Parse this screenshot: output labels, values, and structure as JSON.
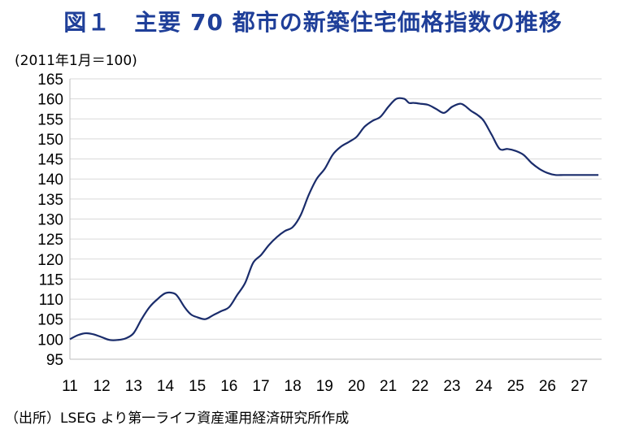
{
  "chart_data": {
    "type": "line",
    "title": "図１　主要 70 都市の新築住宅価格指数の推移",
    "unit_label": "(2011年1月＝100)",
    "source": "（出所）LSEG より第一ライフ資産運用経済研究所作成",
    "xlabel": "",
    "ylabel": "",
    "ylim": [
      95,
      165
    ],
    "xlim": [
      2011,
      2027.7
    ],
    "grid": true,
    "y_ticks": [
      "95",
      "100",
      "105",
      "110",
      "115",
      "120",
      "125",
      "130",
      "135",
      "140",
      "145",
      "150",
      "155",
      "160",
      "165"
    ],
    "x_ticks": [
      "11",
      "12",
      "13",
      "14",
      "15",
      "16",
      "17",
      "18",
      "19",
      "20",
      "21",
      "22",
      "23",
      "24",
      "25",
      "26",
      "27"
    ],
    "series": [
      {
        "color": "#1a2c6b",
        "x": [
          2011.0,
          2011.25,
          2011.5,
          2011.75,
          2012.0,
          2012.25,
          2012.5,
          2012.75,
          2013.0,
          2013.25,
          2013.5,
          2013.75,
          2014.0,
          2014.25,
          2014.4,
          2014.6,
          2014.8,
          2015.0,
          2015.25,
          2015.5,
          2015.75,
          2016.0,
          2016.25,
          2016.5,
          2016.75,
          2017.0,
          2017.25,
          2017.5,
          2017.75,
          2018.0,
          2018.25,
          2018.5,
          2018.75,
          2019.0,
          2019.25,
          2019.5,
          2019.75,
          2020.0,
          2020.25,
          2020.5,
          2020.75,
          2021.0,
          2021.25,
          2021.5,
          2021.65,
          2021.8,
          2022.0,
          2022.25,
          2022.5,
          2022.75,
          2023.0,
          2023.25,
          2023.4,
          2023.6,
          2023.8,
          2024.0,
          2024.25,
          2024.5,
          2024.75,
          2025.0,
          2025.25,
          2025.5,
          2025.75,
          2026.0,
          2026.25,
          2026.5,
          2026.75,
          2027.0,
          2027.25,
          2027.6
        ],
        "values": [
          100.0,
          101.0,
          101.5,
          101.2,
          100.5,
          99.8,
          99.8,
          100.2,
          101.5,
          105.0,
          108.0,
          110.0,
          111.5,
          111.5,
          110.5,
          108.0,
          106.2,
          105.5,
          105.0,
          106.0,
          107.0,
          108.0,
          111.0,
          114.0,
          119.0,
          121.0,
          123.5,
          125.5,
          127.0,
          128.0,
          131.0,
          136.0,
          140.0,
          142.5,
          146.0,
          148.0,
          149.2,
          150.5,
          153.0,
          154.5,
          155.5,
          158.0,
          160.0,
          160.0,
          159.0,
          159.0,
          158.8,
          158.5,
          157.5,
          156.5,
          158.0,
          158.8,
          158.3,
          157.0,
          156.0,
          154.5,
          151.0,
          147.5,
          147.5,
          147.0,
          146.0,
          144.0,
          142.5,
          141.5,
          141.0,
          141.0,
          141.0,
          141.0,
          141.0,
          141.0
        ]
      }
    ]
  }
}
